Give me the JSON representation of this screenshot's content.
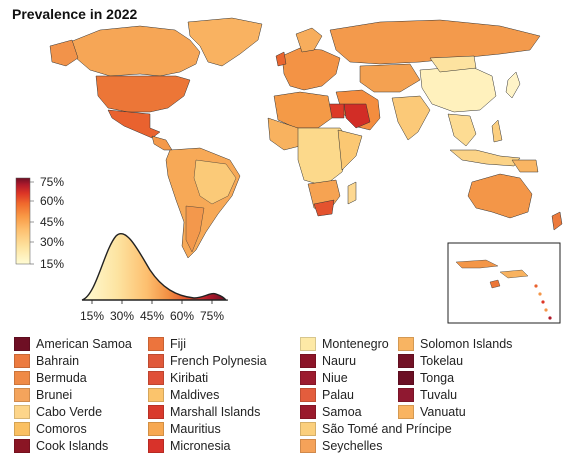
{
  "title": "Prevalence in 2022",
  "scale": {
    "colors": [
      "#fffcd5",
      "#fde3a0",
      "#fdbf6f",
      "#f99a46",
      "#f06a2d",
      "#dd3626",
      "#b01a2b",
      "#6e0f24"
    ],
    "ticks": [
      "75%",
      "60%",
      "45%",
      "30%",
      "15%"
    ],
    "density_ticks": [
      "15%",
      "30%",
      "45%",
      "60%",
      "75%"
    ]
  },
  "legend": [
    {
      "name": "American Samoa",
      "color": "#6e0f24"
    },
    {
      "name": "Bahrain",
      "color": "#ec7a3f"
    },
    {
      "name": "Bermuda",
      "color": "#ef8a46"
    },
    {
      "name": "Brunei",
      "color": "#f4a45c"
    },
    {
      "name": "Cabo Verde",
      "color": "#fdd58a"
    },
    {
      "name": "Comoros",
      "color": "#fac062"
    },
    {
      "name": "Cook Islands",
      "color": "#8a1524"
    },
    {
      "name": "Fiji",
      "color": "#ec743d"
    },
    {
      "name": "French Polynesia",
      "color": "#e0593a"
    },
    {
      "name": "Kiribati",
      "color": "#e05038"
    },
    {
      "name": "Maldives",
      "color": "#fbc46c"
    },
    {
      "name": "Marshall Islands",
      "color": "#d93a2c"
    },
    {
      "name": "Mauritius",
      "color": "#f7a851"
    },
    {
      "name": "Micronesia",
      "color": "#d8322a"
    },
    {
      "name": "Montenegro",
      "color": "#fde9a6"
    },
    {
      "name": "Nauru",
      "color": "#8c1428"
    },
    {
      "name": "Niue",
      "color": "#9c1b2e"
    },
    {
      "name": "Palau",
      "color": "#e35d3d"
    },
    {
      "name": "Samoa",
      "color": "#9a1a2c"
    },
    {
      "name": "São Tomé and Príncipe",
      "color": "#fbcf7c"
    },
    {
      "name": "Seychelles",
      "color": "#f5a259"
    },
    {
      "name": "Solomon Islands",
      "color": "#f8b462"
    },
    {
      "name": "Tokelau",
      "color": "#731226"
    },
    {
      "name": "Tonga",
      "color": "#6b0f24"
    },
    {
      "name": "Tuvalu",
      "color": "#8f1830"
    },
    {
      "name": "Vanuatu",
      "color": "#f9b461"
    }
  ]
}
